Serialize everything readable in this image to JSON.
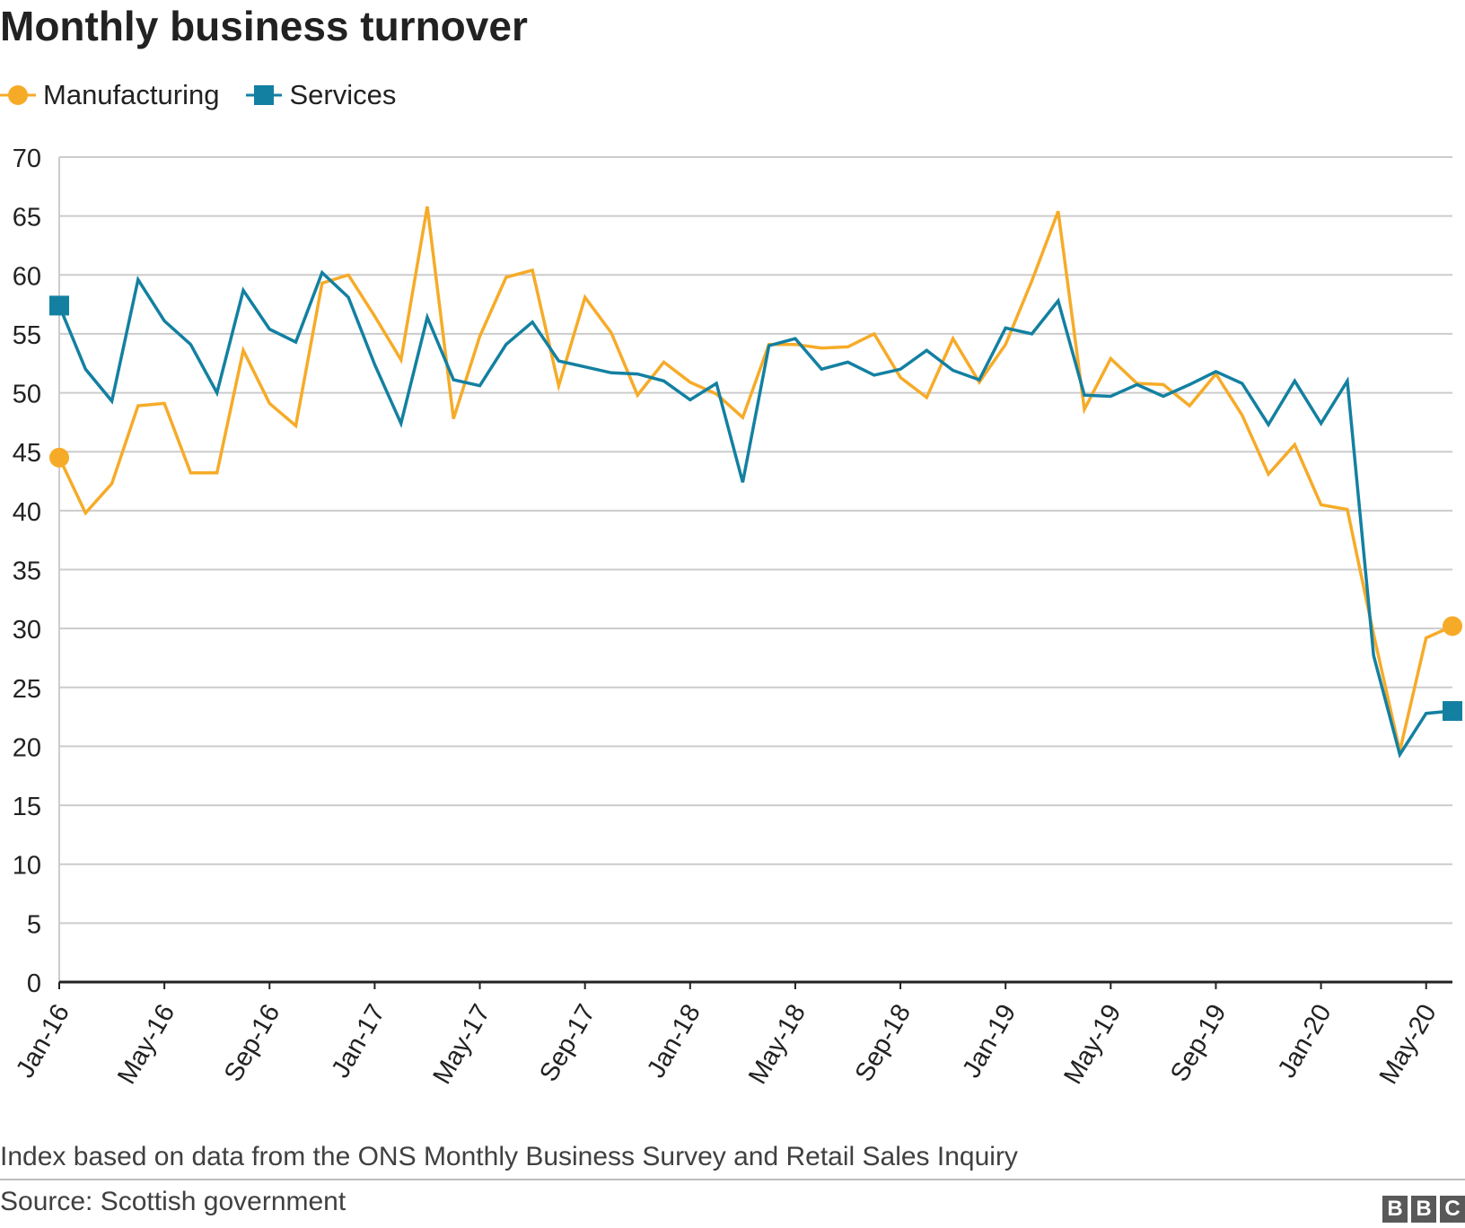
{
  "chart_data": {
    "type": "line",
    "title": "Monthly business turnover",
    "xlabel": "",
    "ylabel": "",
    "ylim": [
      0,
      70
    ],
    "yticks": [
      0,
      5,
      10,
      15,
      20,
      25,
      30,
      35,
      40,
      45,
      50,
      55,
      60,
      65,
      70
    ],
    "grid": true,
    "legend_position": "top-left",
    "x": [
      "Jan-16",
      "Feb-16",
      "Mar-16",
      "Apr-16",
      "May-16",
      "Jun-16",
      "Jul-16",
      "Aug-16",
      "Sep-16",
      "Oct-16",
      "Nov-16",
      "Dec-16",
      "Jan-17",
      "Feb-17",
      "Mar-17",
      "Apr-17",
      "May-17",
      "Jun-17",
      "Jul-17",
      "Aug-17",
      "Sep-17",
      "Oct-17",
      "Nov-17",
      "Dec-17",
      "Jan-18",
      "Feb-18",
      "Mar-18",
      "Apr-18",
      "May-18",
      "Jun-18",
      "Jul-18",
      "Aug-18",
      "Sep-18",
      "Oct-18",
      "Nov-18",
      "Dec-18",
      "Jan-19",
      "Feb-19",
      "Mar-19",
      "Apr-19",
      "May-19",
      "Jun-19",
      "Jul-19",
      "Aug-19",
      "Sep-19",
      "Oct-19",
      "Nov-19",
      "Dec-19",
      "Jan-20",
      "Feb-20",
      "Mar-20",
      "Apr-20",
      "May-20",
      "Jun-20"
    ],
    "xtick_labels": [
      "Jan-16",
      "May-16",
      "Sep-16",
      "Jan-17",
      "May-17",
      "Sep-17",
      "Jan-18",
      "May-18",
      "Sep-18",
      "Jan-19",
      "May-19",
      "Sep-19",
      "Jan-20",
      "May-20"
    ],
    "series": [
      {
        "name": "Manufacturing",
        "color": "#f6ab28",
        "marker": "circle",
        "values": [
          44.5,
          39.8,
          42.3,
          48.9,
          49.1,
          43.2,
          43.2,
          53.6,
          49.1,
          47.2,
          59.3,
          60.0,
          56.5,
          52.8,
          65.8,
          47.8,
          54.8,
          59.8,
          60.4,
          50.6,
          58.1,
          55.1,
          49.8,
          52.6,
          50.9,
          49.9,
          47.9,
          54.1,
          54.1,
          53.8,
          53.9,
          55.0,
          51.3,
          49.6,
          54.6,
          50.9,
          54.1,
          59.5,
          65.4,
          48.6,
          52.9,
          50.8,
          50.7,
          48.9,
          51.6,
          48.1,
          43.1,
          45.6,
          40.5,
          40.1,
          29.5,
          19.6,
          29.2,
          30.2
        ]
      },
      {
        "name": "Services",
        "color": "#1380a1",
        "marker": "square",
        "values": [
          57.4,
          52.0,
          49.3,
          59.6,
          56.1,
          54.1,
          50.0,
          58.7,
          55.4,
          54.3,
          60.2,
          58.1,
          52.4,
          47.4,
          56.4,
          51.1,
          50.6,
          54.1,
          56.0,
          52.7,
          52.2,
          51.7,
          51.6,
          51.0,
          49.4,
          50.8,
          42.4,
          54.0,
          54.6,
          52.0,
          52.6,
          51.5,
          52.0,
          53.6,
          51.9,
          51.1,
          55.5,
          55.0,
          57.8,
          49.8,
          49.7,
          50.7,
          49.7,
          50.7,
          51.8,
          50.8,
          47.3,
          51.0,
          47.4,
          51.0,
          27.7,
          19.3,
          22.8,
          23.0
        ]
      }
    ]
  },
  "legend": {
    "manufacturing_label": "Manufacturing",
    "services_label": "Services"
  },
  "footnote": "Index based on data from the ONS Monthly Business Survey and Retail Sales Inquiry",
  "source": "Source: Scottish government",
  "logo": [
    "B",
    "B",
    "C"
  ]
}
